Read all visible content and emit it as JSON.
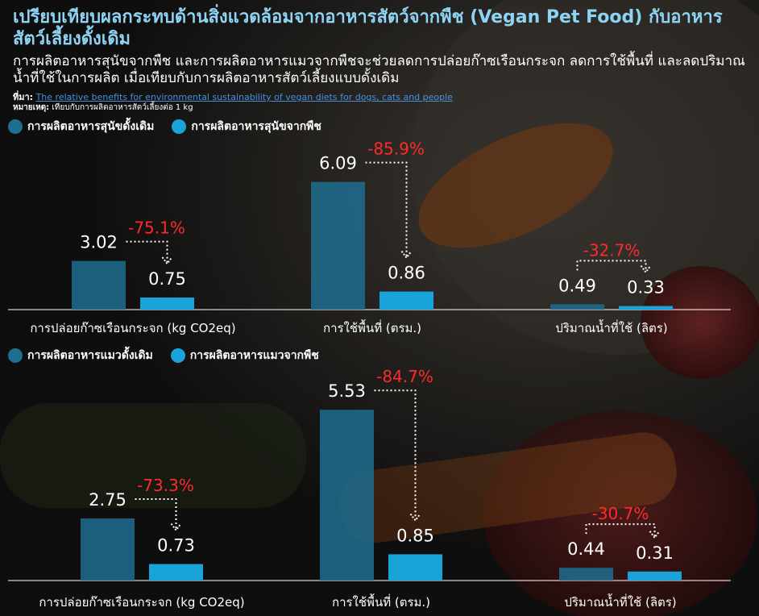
{
  "header": {
    "title": "เปรียบเทียบผลกระทบด้านสิ่งแวดล้อมจากอาหารสัตว์จากพืช (Vegan Pet Food) กับอาหารสัตว์เลี้ยงดั้งเดิม",
    "subtitle": "การผลิตอาหารสุนัขจากพืช และการผลิตอาหารแมวจากพืชจะช่วยลดการปล่อยก๊าซเรือนกระจก ลดการใช้พื้นที่ และลดปริมาณน้ำที่ใช้ในการผลิต เมื่อเทียบกับการผลิตอาหารสัตว์เลี้ยงแบบดั้งเดิม",
    "source_label": "ที่มา:",
    "source_link": "The relative benefits for environmental sustainability of vegan diets for dogs, cats and people",
    "note_label": "หมายเหตุ:",
    "note_text": "เทียบกับการผลิตอาหารสัตว์เลี้ยงต่อ 1 kg"
  },
  "colors": {
    "traditional": "#1f6d8f",
    "plant": "#1aa3d9",
    "pct": "#ff2a2a",
    "axis": "#ffffff"
  },
  "chart_data": [
    {
      "type": "bar",
      "categories": [
        "การปล่อยก๊าซเรือนกระจก (kg CO2eq)",
        "การใช้พื้นที่ (ตรม.)",
        "ปริมาณน้ำที่ใช้ (ลิตร)"
      ],
      "series": [
        {
          "name": "การผลิตอาหารสุนัขดั้งเดิม",
          "values": [
            3.02,
            6.09,
            0.49
          ]
        },
        {
          "name": "การผลิตอาหารสุนัขจากพืช",
          "values": [
            0.75,
            0.86,
            0.33
          ]
        }
      ],
      "labels": [
        [
          "3.02",
          "6.09",
          "0.49"
        ],
        [
          "0.75",
          "0.86",
          "0.33"
        ]
      ],
      "changes": [
        "-75.1%",
        "-85.9%",
        "-32.7%"
      ]
    },
    {
      "type": "bar",
      "categories": [
        "การปล่อยก๊าซเรือนกระจก (kg CO2eq)",
        "การใช้พื้นที่ (ตรม.)",
        "ปริมาณน้ำที่ใช้ (ลิตร)"
      ],
      "series": [
        {
          "name": "การผลิตอาหารแมวดั้งเดิม",
          "values": [
            2.75,
            5.53,
            0.44
          ]
        },
        {
          "name": "การผลิตอาหารแมวจากพืช",
          "values": [
            0.73,
            0.85,
            0.31
          ]
        }
      ],
      "labels": [
        [
          "2.75",
          "5.53",
          "0.44"
        ],
        [
          "0.73",
          "0.85",
          "0.31"
        ]
      ],
      "changes": [
        "-73.3%",
        "-84.7%",
        "-30.7%"
      ]
    }
  ]
}
